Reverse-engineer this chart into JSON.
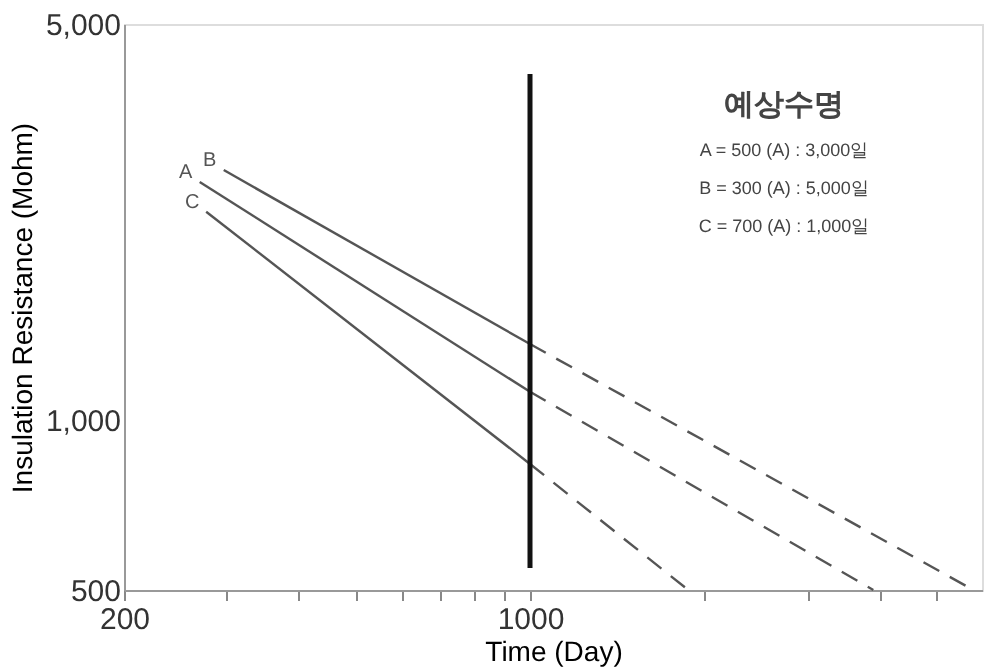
{
  "chart_data": {
    "type": "line",
    "xlabel": "Time (Day)",
    "ylabel": "Insulation Resistance (Mohm)",
    "log": "xy",
    "grid": false,
    "legend": false,
    "marker": "none",
    "xlim": [
      200,
      6000
    ],
    "ylim": [
      500,
      5000
    ],
    "xticks": [
      200,
      {
        "value": 300,
        "label": null
      },
      {
        "value": 400,
        "label": null
      },
      {
        "value": 500,
        "label": null
      },
      {
        "value": 600,
        "label": null
      },
      {
        "value": 700,
        "label": null
      },
      {
        "value": 800,
        "label": null
      },
      {
        "value": 900,
        "label": null
      },
      1000,
      {
        "value": 2000,
        "label": null
      },
      {
        "value": 3000,
        "label": null
      },
      {
        "value": 4000,
        "label": null
      },
      {
        "value": 5000,
        "label": null
      }
    ],
    "yticks": [
      500,
      {
        "value": 1000,
        "label": "1,000"
      },
      {
        "value": 5000,
        "label": "5,000"
      }
    ],
    "series": [
      {
        "name": "A",
        "color": "#555555",
        "line_style": "solid",
        "x": [
          270,
          1000
        ],
        "values": [
          2630,
          1120
        ]
      },
      {
        "name": "B",
        "color": "#555555",
        "line_style": "solid",
        "x": [
          297,
          1000
        ],
        "values": [
          2760,
          1360
        ]
      },
      {
        "name": "C",
        "color": "#555555",
        "line_style": "solid",
        "x": [
          277,
          1000
        ],
        "values": [
          2330,
          835
        ]
      },
      {
        "color": "#555555",
        "line_style": "dashed",
        "x": [
          1000,
          3900
        ],
        "values": [
          1120,
          500
        ]
      },
      {
        "color": "#555555",
        "line_style": "dashed",
        "x": [
          1000,
          5800
        ],
        "values": [
          1360,
          500
        ]
      },
      {
        "color": "#555555",
        "line_style": "dashed",
        "x": [
          1000,
          1850
        ],
        "values": [
          835,
          505
        ]
      }
    ],
    "ref_lines": [
      {
        "axis": "x",
        "value": 1000,
        "color": "#111111"
      }
    ],
    "annotations": [
      "예상수명",
      "A = 500 (A) : 3,000일",
      "B = 300 (A) : 5,000일",
      "C = 700 (A) : 1,000일"
    ]
  }
}
